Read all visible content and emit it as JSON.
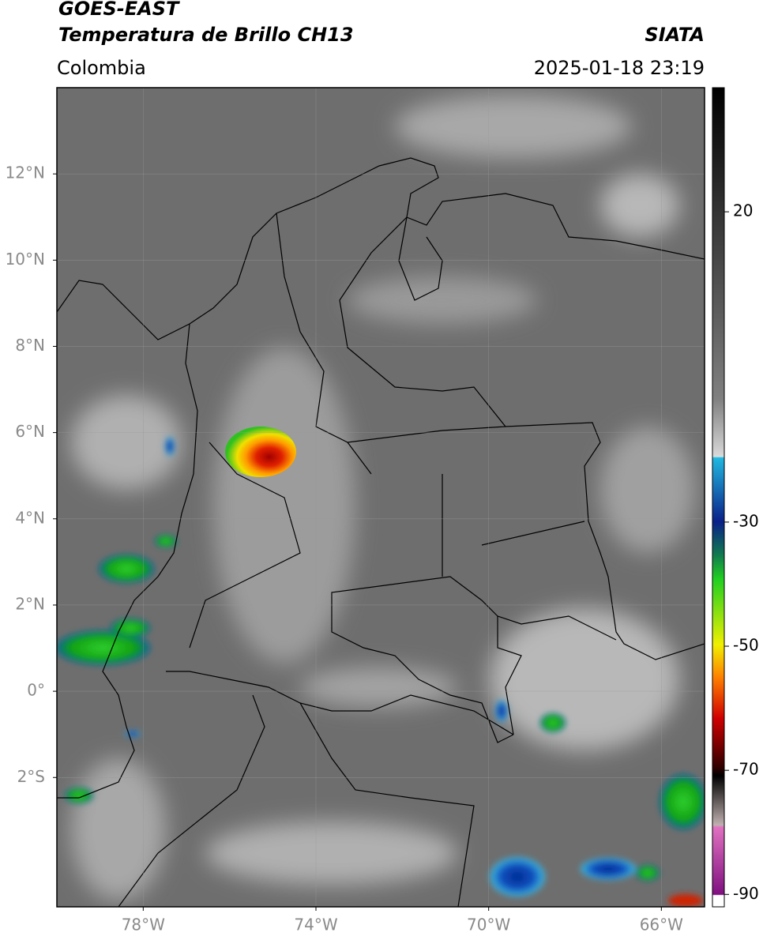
{
  "header": {
    "title": "GOES-EAST",
    "subtitle": "Temperatura de Brillo CH13",
    "source": "SIATA",
    "region": "Colombia",
    "datetime": "2025-01-18 23:19"
  },
  "map": {
    "xlim": [
      -80,
      -65
    ],
    "ylim": [
      -5,
      14
    ],
    "xticks": [
      {
        "value": -78,
        "label": "78°W"
      },
      {
        "value": -74,
        "label": "74°W"
      },
      {
        "value": -70,
        "label": "70°W"
      },
      {
        "value": -66,
        "label": "66°W"
      }
    ],
    "yticks": [
      {
        "value": 12,
        "label": "12°N"
      },
      {
        "value": 10,
        "label": "10°N"
      },
      {
        "value": 8,
        "label": "8°N"
      },
      {
        "value": 6,
        "label": "6°N"
      },
      {
        "value": 4,
        "label": "4°N"
      },
      {
        "value": 2,
        "label": "2°N"
      },
      {
        "value": 0,
        "label": "0°"
      },
      {
        "value": -2,
        "label": "2°S"
      }
    ],
    "grid": true
  },
  "colorbar": {
    "range": [
      -92,
      40
    ],
    "ticks": [
      20,
      -30,
      -50,
      -70,
      -90
    ]
  }
}
